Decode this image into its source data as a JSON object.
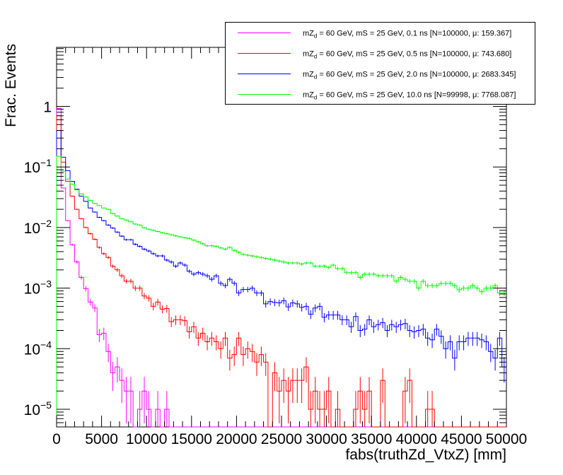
{
  "chart_data": {
    "type": "histogram-step",
    "title": "",
    "xlabel": "fabs(truthZd_VtxZ) [mm]",
    "ylabel": "Frac. Events",
    "xlim": [
      0,
      50000
    ],
    "ylim": [
      5.4e-06,
      9.5
    ],
    "yscale": "log",
    "bin_width": 500,
    "n_bins": 100,
    "grid": false,
    "legend_position": "top-right",
    "xtick_labels": [
      "0",
      "5000",
      "10000",
      "15000",
      "20000",
      "25000",
      "30000",
      "35000",
      "40000",
      "45000",
      "50000"
    ],
    "xtick_values": [
      0,
      5000,
      10000,
      15000,
      20000,
      25000,
      30000,
      35000,
      40000,
      45000,
      50000
    ],
    "ytick_labels": [
      {
        "value": 1,
        "base": "1",
        "exp": ""
      },
      {
        "value": 0.1,
        "base": "10",
        "exp": "−1"
      },
      {
        "value": 0.01,
        "base": "10",
        "exp": "−2"
      },
      {
        "value": 0.001,
        "base": "10",
        "exp": "−3"
      },
      {
        "value": 0.0001,
        "base": "10",
        "exp": "−4"
      },
      {
        "value": 1e-05,
        "base": "10",
        "exp": "−5"
      }
    ],
    "series": [
      {
        "name": "mZd = 60 GeV, mS = 25 GeV, 0.1 ns [N=100000, μ: 159.367]",
        "label_prefix": "mZ",
        "label_sub": "d",
        "label_rest": " = 60 GeV, mS = 25 GeV, 0.1 ns [N=100000, μ: 159.367]",
        "color": "#ff00ff",
        "N": 100000,
        "mean": 159.367,
        "values": [
          0.93,
          0.045,
          0.013,
          0.0052,
          0.0027,
          0.0015,
          0.00098,
          0.00059,
          0.00047,
          0.00017,
          0.00018,
          9e-05,
          4e-05,
          5e-05,
          3e-05,
          2e-05,
          2e-05,
          0,
          1e-05,
          2e-05,
          1e-05,
          0,
          1e-05,
          0,
          1e-05,
          0,
          0,
          0,
          0,
          0,
          0,
          0,
          0,
          0,
          0,
          0,
          0,
          0,
          0,
          0,
          0,
          0,
          0,
          0,
          0,
          0,
          0,
          0,
          0,
          0,
          0,
          0,
          0,
          0,
          0,
          0,
          0,
          0,
          0,
          0,
          0,
          0,
          0,
          0,
          0,
          0,
          0,
          0,
          0,
          0,
          0,
          0,
          0,
          0,
          0,
          0,
          0,
          0,
          0,
          0,
          0,
          0,
          0,
          0,
          0,
          0,
          0,
          0,
          0,
          0,
          0,
          0,
          0,
          0,
          0,
          0,
          0,
          0,
          0,
          0
        ]
      },
      {
        "name": "mZd = 60 GeV, mS = 25 GeV, 0.5 ns [N=100000, μ: 743.680]",
        "label_prefix": "mZ",
        "label_sub": "d",
        "label_rest": " = 60 GeV, mS = 25 GeV, 0.5 ns [N=100000, μ: 743.680]",
        "color": "#ff0000",
        "N": 100000,
        "mean": 743.68,
        "values": [
          0.7,
          0.12,
          0.058,
          0.033,
          0.02,
          0.014,
          0.01,
          0.0079,
          0.0064,
          0.0047,
          0.0037,
          0.0032,
          0.0023,
          0.002,
          0.0016,
          0.0013,
          0.0013,
          0.001,
          0.001,
          0.00074,
          0.00068,
          0.0005,
          0.00059,
          0.00045,
          0.00046,
          0.00028,
          0.0003,
          0.0003,
          0.00029,
          0.00019,
          0.00023,
          0.00015,
          0.00018,
          0.00013,
          0.00015,
          0.00013,
          0.0001,
          0.00015,
          7e-05,
          8e-05,
          0.00015,
          8e-05,
          0.0001,
          9e-05,
          6e-05,
          8e-05,
          6e-05,
          0,
          4e-05,
          2e-05,
          3e-05,
          2e-05,
          3e-05,
          3e-05,
          3e-05,
          5e-05,
          1e-05,
          2e-05,
          1e-05,
          1e-05,
          2e-05,
          0,
          1e-05,
          0,
          0,
          0,
          1e-05,
          2e-05,
          1e-05,
          2e-05,
          0,
          0,
          3e-05,
          0,
          0,
          0,
          0,
          2e-05,
          3e-05,
          0,
          0,
          0,
          1e-05,
          1e-05,
          0,
          0,
          0,
          0,
          0,
          0,
          0,
          0,
          0,
          0,
          0,
          0,
          0,
          0,
          0,
          0
        ]
      },
      {
        "name": "mZd = 60 GeV, mS = 25 GeV, 2.0 ns [N=100000, μ: 2683.345]",
        "label_prefix": "mZ",
        "label_sub": "d",
        "label_rest": " = 60 GeV, mS = 25 GeV, 2.0 ns [N=100000, μ: 2683.345]",
        "color": "#0000ff",
        "N": 100000,
        "mean": 2683.345,
        "values": [
          0.4,
          0.145,
          0.087,
          0.058,
          0.043,
          0.033,
          0.027,
          0.021,
          0.018,
          0.0147,
          0.013,
          0.011,
          0.0098,
          0.0084,
          0.0072,
          0.0063,
          0.0063,
          0.0053,
          0.0049,
          0.0044,
          0.0041,
          0.0037,
          0.0034,
          0.0034,
          0.0029,
          0.0027,
          0.0023,
          0.0026,
          0.0024,
          0.0019,
          0.0017,
          0.0018,
          0.0017,
          0.0016,
          0.0014,
          0.0016,
          0.0012,
          0.0011,
          0.0014,
          0.0012,
          0.00083,
          0.00095,
          0.00095,
          0.001,
          0.00083,
          0.00083,
          0.00055,
          0.0006,
          0.00058,
          0.00057,
          0.00062,
          0.00049,
          0.00057,
          0.00055,
          0.00048,
          0.0005,
          0.00037,
          0.00047,
          0.0005,
          0.00033,
          0.00036,
          0.00036,
          0.00036,
          0.0003,
          0.0003,
          0.00023,
          0.00034,
          0.0002,
          0.00021,
          0.0003,
          0.00023,
          0.00025,
          0.00027,
          0.0002,
          0.00025,
          0.00023,
          0.00025,
          0.00026,
          0.0002,
          0.00019,
          0.0002,
          0.00021,
          0.00015,
          0.00014,
          0.00021,
          0.00016,
          0.0001,
          0.00013,
          7e-05,
          0.00013,
          0.00013,
          0.00015,
          0.00015,
          0.00015,
          0.00014,
          0.00013,
          9e-05,
          7e-05,
          0.00015,
          5e-05
        ]
      },
      {
        "name": "mZd = 60 GeV, mS = 25 GeV, 10.0 ns [N=99998, μ: 7768.087]",
        "label_prefix": "mZ",
        "label_sub": "d",
        "label_rest": " = 60 GeV, mS = 25 GeV, 10.0 ns [N=99998, μ: 7768.087]",
        "color": "#00ff00",
        "N": 99998,
        "mean": 7768.087,
        "values": [
          0.15,
          0.085,
          0.063,
          0.052,
          0.042,
          0.036,
          0.032,
          0.028,
          0.025,
          0.023,
          0.021,
          0.02,
          0.017,
          0.0155,
          0.014,
          0.0133,
          0.0125,
          0.0114,
          0.011,
          0.0099,
          0.0094,
          0.009,
          0.0086,
          0.0082,
          0.0079,
          0.0076,
          0.0073,
          0.007,
          0.0068,
          0.0066,
          0.0062,
          0.0058,
          0.0054,
          0.005,
          0.005,
          0.0049,
          0.0046,
          0.0044,
          0.0047,
          0.0042,
          0.0039,
          0.0036,
          0.0035,
          0.0034,
          0.0033,
          0.0032,
          0.0031,
          0.003,
          0.0029,
          0.0028,
          0.0027,
          0.0026,
          0.0026,
          0.0026,
          0.0025,
          0.0026,
          0.0026,
          0.0023,
          0.0023,
          0.0023,
          0.0022,
          0.0024,
          0.0021,
          0.0021,
          0.0018,
          0.0018,
          0.0018,
          0.0015,
          0.0017,
          0.0017,
          0.0017,
          0.0016,
          0.0016,
          0.0016,
          0.0016,
          0.0013,
          0.0015,
          0.0014,
          0.0013,
          0.0013,
          0.001,
          0.0013,
          0.0011,
          0.0011,
          0.0011,
          0.0012,
          0.0012,
          0.0012,
          0.0011,
          0.00094,
          0.001,
          0.001,
          0.0011,
          0.001,
          0.00087,
          0.001,
          0.001,
          0.0011,
          0.00083,
          0.00083
        ]
      }
    ]
  }
}
